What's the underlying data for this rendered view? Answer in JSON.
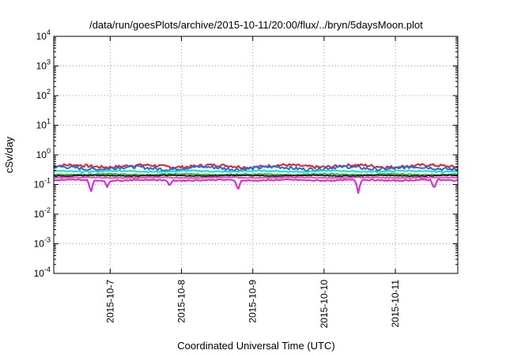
{
  "chart_data": {
    "type": "line",
    "title": "/data/run/goesPlots/archive/2015-10-11/20:00/flux/../bryn/5daysMoon.plot",
    "xlabel": "Coordinated Universal Time (UTC)",
    "ylabel": "cSv/day",
    "yscale": "log",
    "ylim": [
      0.0001,
      10000
    ],
    "xlim": [
      "2015-10-06T05:00",
      "2015-10-11T21:00"
    ],
    "y_ticks": [
      {
        "base": "10",
        "exp": "-4",
        "value": 0.0001
      },
      {
        "base": "10",
        "exp": "-3",
        "value": 0.001
      },
      {
        "base": "10",
        "exp": "-2",
        "value": 0.01
      },
      {
        "base": "10",
        "exp": "-1",
        "value": 0.1
      },
      {
        "base": "10",
        "exp": "0",
        "value": 1
      },
      {
        "base": "10",
        "exp": "1",
        "value": 10
      },
      {
        "base": "10",
        "exp": "2",
        "value": 100
      },
      {
        "base": "10",
        "exp": "3",
        "value": 1000
      },
      {
        "base": "10",
        "exp": "4",
        "value": 10000
      }
    ],
    "x_ticks": [
      {
        "label": "2015-10-7",
        "value": "2015-10-07T00:00"
      },
      {
        "label": "2015-10-8",
        "value": "2015-10-08T00:00"
      },
      {
        "label": "2015-10-9",
        "value": "2015-10-09T00:00"
      },
      {
        "label": "2015-10-10",
        "value": "2015-10-10T00:00"
      },
      {
        "label": "2015-10-11",
        "value": "2015-10-11T00:00"
      }
    ],
    "grid": true,
    "series": [
      {
        "color": "#e4202a",
        "level": 0.42,
        "jitter": 0.14,
        "dips": []
      },
      {
        "color": "#1f6fe0",
        "level": 0.36,
        "jitter": 0.16,
        "dips": []
      },
      {
        "color": "#1ed6d6",
        "level": 0.28,
        "jitter": 0.06,
        "dips": []
      },
      {
        "color": "#2fc12f",
        "level": 0.22,
        "jitter": 0.05,
        "dips": []
      },
      {
        "color": "#222222",
        "level": 0.2,
        "jitter": 0.04,
        "dips": []
      },
      {
        "color": "#e84ab8",
        "level": 0.17,
        "jitter": 0.04,
        "dips": []
      },
      {
        "color": "#e01fe0",
        "level": 0.14,
        "jitter": 0.05,
        "dips": [
          {
            "t": "2015-10-06T17:30",
            "y": 0.05
          },
          {
            "t": "2015-10-06T23:00",
            "y": 0.08
          },
          {
            "t": "2015-10-07T20:00",
            "y": 0.09
          },
          {
            "t": "2015-10-08T19:00",
            "y": 0.06
          },
          {
            "t": "2015-10-10T11:30",
            "y": 0.05
          },
          {
            "t": "2015-10-11T13:00",
            "y": 0.07
          }
        ]
      }
    ]
  }
}
